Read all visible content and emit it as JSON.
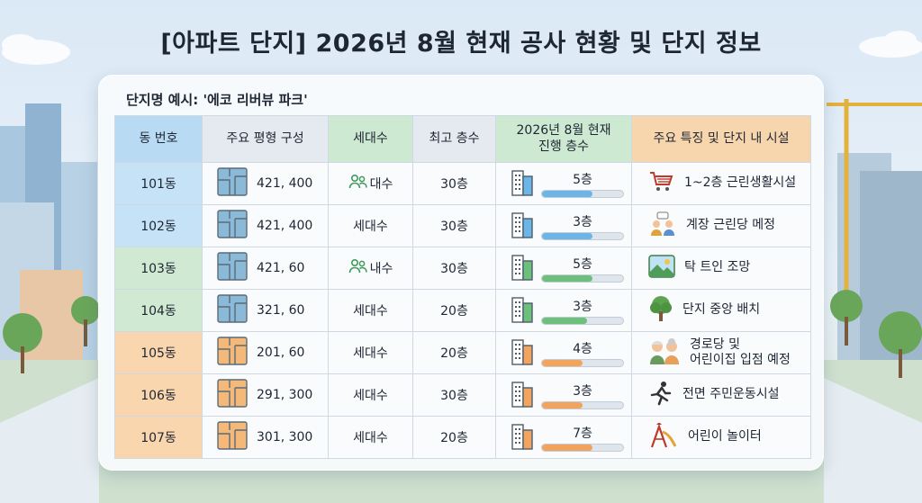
{
  "page_title": "[아파트 단지] 2026년 8월 현재 공사 현황 및 단지 정보",
  "example_label": "단지명 예시: '에코 리버뷰 파크'",
  "headers": {
    "dong": "동 번호",
    "plan": "주요 평형 구성",
    "households": "세대수",
    "max_floor": "최고 층수",
    "progress_line1": "2026년 8월 현재",
    "progress_line2": "진행 층수",
    "features": "주요 특징 및 단지 내 시설"
  },
  "colors": {
    "blue": "#6cb5e6",
    "green": "#6cc07b",
    "orange": "#f2a35e",
    "blue_plan": "#8bb9d8",
    "orange_plan": "#f4b878"
  },
  "rows": [
    {
      "dong": "101동",
      "plan": "421, 400",
      "households": "대수",
      "households_icon": "people-icon",
      "max_floor": "30층",
      "progress": "5층",
      "progress_fraction": 0.62,
      "group": "blue",
      "feature_icon": "shopping-cart-icon",
      "feature_lines": [
        "1~2층 근린생활시설"
      ]
    },
    {
      "dong": "102동",
      "plan": "421, 400",
      "households": "세대수",
      "households_icon": "",
      "max_floor": "30층",
      "progress": "3층",
      "progress_fraction": 0.62,
      "group": "blue",
      "feature_icon": "meeting-people-icon",
      "feature_lines": [
        "계장 근린당 메정"
      ]
    },
    {
      "dong": "103동",
      "plan": "421, 60",
      "households": "내수",
      "households_icon": "people-icon",
      "max_floor": "30층",
      "progress": "5층",
      "progress_fraction": 0.62,
      "group": "green",
      "feature_icon": "landscape-icon",
      "feature_lines": [
        "탁 트인 조망"
      ]
    },
    {
      "dong": "104동",
      "plan": "321, 60",
      "households": "세대수",
      "households_icon": "",
      "max_floor": "20층",
      "progress": "3층",
      "progress_fraction": 0.55,
      "group": "green",
      "feature_icon": "tree-icon",
      "feature_lines": [
        "단지 중앙 배치"
      ]
    },
    {
      "dong": "105동",
      "plan": "201, 60",
      "households": "세대수",
      "households_icon": "",
      "max_floor": "20층",
      "progress": "4층",
      "progress_fraction": 0.5,
      "group": "orange",
      "feature_icon": "elderly-couple-icon",
      "feature_lines": [
        "경로당 및",
        "어린이집 입점 예정"
      ]
    },
    {
      "dong": "106동",
      "plan": "291, 300",
      "households": "세대수",
      "households_icon": "",
      "max_floor": "30층",
      "progress": "3층",
      "progress_fraction": 0.5,
      "group": "orange",
      "feature_icon": "running-person-icon",
      "feature_lines": [
        "전면 주민운동시설"
      ]
    },
    {
      "dong": "107동",
      "plan": "301, 300",
      "households": "세대수",
      "households_icon": "",
      "max_floor": "20층",
      "progress": "7층",
      "progress_fraction": 0.62,
      "group": "orange",
      "feature_icon": "playground-slide-icon",
      "feature_lines": [
        "어린이 놀이터"
      ]
    }
  ]
}
